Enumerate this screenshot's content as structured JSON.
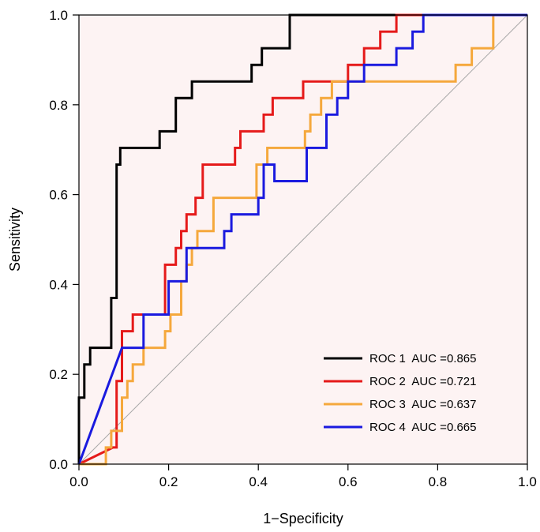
{
  "chart_data": {
    "type": "line",
    "title": "",
    "xlabel": "1−Specificity",
    "ylabel": "Sensitivity",
    "xlim": [
      0,
      1
    ],
    "ylim": [
      0,
      1
    ],
    "xticks": [
      "0.0",
      "0.2",
      "0.4",
      "0.6",
      "0.8",
      "1.0"
    ],
    "yticks": [
      "0.0",
      "0.2",
      "0.4",
      "0.6",
      "0.8",
      "1.0"
    ],
    "legend_position": "bottom-right",
    "shaded_region": {
      "color": "#fdf3f3"
    },
    "reference_line": {
      "from": [
        0,
        0
      ],
      "to": [
        1,
        1
      ],
      "color": "#a6a6a6"
    },
    "series": [
      {
        "name": "ROC 1",
        "label": "ROC 1  AUC =0.865",
        "auc": "0.865",
        "color": "#000000",
        "points": [
          [
            0,
            0
          ],
          [
            0,
            0.148
          ],
          [
            0.012,
            0.148
          ],
          [
            0.012,
            0.222
          ],
          [
            0.025,
            0.222
          ],
          [
            0.025,
            0.259
          ],
          [
            0.072,
            0.259
          ],
          [
            0.072,
            0.37
          ],
          [
            0.084,
            0.37
          ],
          [
            0.084,
            0.667
          ],
          [
            0.092,
            0.667
          ],
          [
            0.092,
            0.704
          ],
          [
            0.18,
            0.704
          ],
          [
            0.18,
            0.741
          ],
          [
            0.216,
            0.741
          ],
          [
            0.216,
            0.815
          ],
          [
            0.252,
            0.815
          ],
          [
            0.252,
            0.852
          ],
          [
            0.385,
            0.852
          ],
          [
            0.385,
            0.889
          ],
          [
            0.408,
            0.889
          ],
          [
            0.408,
            0.926
          ],
          [
            0.47,
            0.926
          ],
          [
            0.47,
            1.0
          ],
          [
            1.0,
            1.0
          ]
        ]
      },
      {
        "name": "ROC 2",
        "label": "ROC 2  AUC =0.721",
        "auc": "0.721",
        "color": "#e51a1a",
        "points": [
          [
            0,
            0
          ],
          [
            0.076,
            0.037
          ],
          [
            0.084,
            0.037
          ],
          [
            0.084,
            0.185
          ],
          [
            0.096,
            0.185
          ],
          [
            0.096,
            0.296
          ],
          [
            0.12,
            0.296
          ],
          [
            0.12,
            0.333
          ],
          [
            0.192,
            0.333
          ],
          [
            0.192,
            0.444
          ],
          [
            0.216,
            0.444
          ],
          [
            0.216,
            0.481
          ],
          [
            0.228,
            0.481
          ],
          [
            0.228,
            0.519
          ],
          [
            0.24,
            0.519
          ],
          [
            0.24,
            0.556
          ],
          [
            0.26,
            0.556
          ],
          [
            0.26,
            0.593
          ],
          [
            0.276,
            0.593
          ],
          [
            0.276,
            0.667
          ],
          [
            0.348,
            0.667
          ],
          [
            0.348,
            0.704
          ],
          [
            0.36,
            0.704
          ],
          [
            0.36,
            0.741
          ],
          [
            0.412,
            0.741
          ],
          [
            0.412,
            0.778
          ],
          [
            0.432,
            0.778
          ],
          [
            0.432,
            0.815
          ],
          [
            0.5,
            0.815
          ],
          [
            0.5,
            0.852
          ],
          [
            0.6,
            0.852
          ],
          [
            0.6,
            0.889
          ],
          [
            0.636,
            0.889
          ],
          [
            0.636,
            0.926
          ],
          [
            0.672,
            0.926
          ],
          [
            0.672,
            0.963
          ],
          [
            0.708,
            0.963
          ],
          [
            0.708,
            1.0
          ],
          [
            1.0,
            1.0
          ]
        ]
      },
      {
        "name": "ROC 3",
        "label": "ROC 3  AUC =0.637",
        "auc": "0.637",
        "color": "#f5a83c",
        "points": [
          [
            0,
            0
          ],
          [
            0.06,
            0
          ],
          [
            0.06,
            0.037
          ],
          [
            0.072,
            0.037
          ],
          [
            0.072,
            0.074
          ],
          [
            0.096,
            0.074
          ],
          [
            0.096,
            0.148
          ],
          [
            0.108,
            0.148
          ],
          [
            0.108,
            0.185
          ],
          [
            0.12,
            0.185
          ],
          [
            0.12,
            0.222
          ],
          [
            0.144,
            0.222
          ],
          [
            0.144,
            0.259
          ],
          [
            0.192,
            0.259
          ],
          [
            0.192,
            0.296
          ],
          [
            0.204,
            0.296
          ],
          [
            0.204,
            0.333
          ],
          [
            0.228,
            0.333
          ],
          [
            0.228,
            0.407
          ],
          [
            0.24,
            0.407
          ],
          [
            0.24,
            0.444
          ],
          [
            0.252,
            0.444
          ],
          [
            0.252,
            0.481
          ],
          [
            0.264,
            0.481
          ],
          [
            0.264,
            0.519
          ],
          [
            0.3,
            0.519
          ],
          [
            0.3,
            0.593
          ],
          [
            0.396,
            0.593
          ],
          [
            0.396,
            0.667
          ],
          [
            0.42,
            0.667
          ],
          [
            0.42,
            0.704
          ],
          [
            0.504,
            0.704
          ],
          [
            0.504,
            0.741
          ],
          [
            0.516,
            0.741
          ],
          [
            0.516,
            0.778
          ],
          [
            0.54,
            0.778
          ],
          [
            0.54,
            0.815
          ],
          [
            0.564,
            0.815
          ],
          [
            0.564,
            0.852
          ],
          [
            0.612,
            0.852
          ],
          [
            0.612,
            0.852
          ],
          [
            0.84,
            0.852
          ],
          [
            0.84,
            0.889
          ],
          [
            0.876,
            0.889
          ],
          [
            0.876,
            0.926
          ],
          [
            0.924,
            0.926
          ],
          [
            0.924,
            1.0
          ],
          [
            1.0,
            1.0
          ]
        ]
      },
      {
        "name": "ROC 4",
        "label": "ROC 4  AUC =0.665",
        "auc": "0.665",
        "color": "#1a1adf",
        "points": [
          [
            0,
            0
          ],
          [
            0.096,
            0.259
          ],
          [
            0.144,
            0.259
          ],
          [
            0.144,
            0.333
          ],
          [
            0.2,
            0.333
          ],
          [
            0.2,
            0.407
          ],
          [
            0.24,
            0.407
          ],
          [
            0.24,
            0.481
          ],
          [
            0.324,
            0.481
          ],
          [
            0.324,
            0.519
          ],
          [
            0.34,
            0.519
          ],
          [
            0.34,
            0.556
          ],
          [
            0.4,
            0.556
          ],
          [
            0.4,
            0.593
          ],
          [
            0.412,
            0.593
          ],
          [
            0.412,
            0.667
          ],
          [
            0.436,
            0.667
          ],
          [
            0.436,
            0.63
          ],
          [
            0.5,
            0.63
          ],
          [
            0.5,
            0.63
          ],
          [
            0.508,
            0.63
          ],
          [
            0.508,
            0.704
          ],
          [
            0.552,
            0.704
          ],
          [
            0.552,
            0.778
          ],
          [
            0.576,
            0.778
          ],
          [
            0.576,
            0.815
          ],
          [
            0.6,
            0.815
          ],
          [
            0.6,
            0.852
          ],
          [
            0.636,
            0.852
          ],
          [
            0.636,
            0.889
          ],
          [
            0.708,
            0.889
          ],
          [
            0.708,
            0.926
          ],
          [
            0.744,
            0.926
          ],
          [
            0.744,
            0.963
          ],
          [
            0.768,
            0.963
          ],
          [
            0.768,
            1.0
          ],
          [
            1.0,
            1.0
          ]
        ]
      }
    ]
  }
}
